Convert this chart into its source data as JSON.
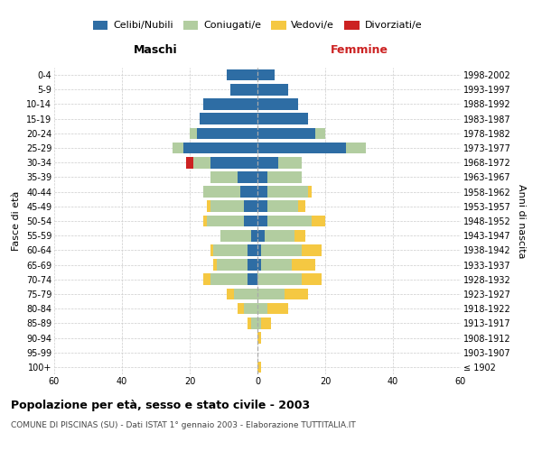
{
  "age_groups": [
    "100+",
    "95-99",
    "90-94",
    "85-89",
    "80-84",
    "75-79",
    "70-74",
    "65-69",
    "60-64",
    "55-59",
    "50-54",
    "45-49",
    "40-44",
    "35-39",
    "30-34",
    "25-29",
    "20-24",
    "15-19",
    "10-14",
    "5-9",
    "0-4"
  ],
  "birth_years": [
    "≤ 1902",
    "1903-1907",
    "1908-1912",
    "1913-1917",
    "1918-1922",
    "1923-1927",
    "1928-1932",
    "1933-1937",
    "1938-1942",
    "1943-1947",
    "1948-1952",
    "1953-1957",
    "1958-1962",
    "1963-1967",
    "1968-1972",
    "1973-1977",
    "1978-1982",
    "1983-1987",
    "1988-1992",
    "1993-1997",
    "1998-2002"
  ],
  "maschi": {
    "celibi": [
      0,
      0,
      0,
      0,
      0,
      0,
      3,
      3,
      3,
      2,
      4,
      4,
      5,
      6,
      14,
      22,
      18,
      17,
      16,
      8,
      9
    ],
    "coniugati": [
      0,
      0,
      0,
      2,
      4,
      7,
      11,
      9,
      10,
      9,
      11,
      10,
      11,
      8,
      5,
      3,
      2,
      0,
      0,
      0,
      0
    ],
    "vedovi": [
      0,
      0,
      0,
      1,
      2,
      2,
      2,
      1,
      1,
      0,
      1,
      1,
      0,
      0,
      0,
      0,
      0,
      0,
      0,
      0,
      0
    ],
    "divorziati": [
      0,
      0,
      0,
      0,
      0,
      0,
      0,
      0,
      0,
      0,
      0,
      0,
      0,
      0,
      2,
      0,
      0,
      0,
      0,
      0,
      0
    ]
  },
  "femmine": {
    "nubili": [
      0,
      0,
      0,
      0,
      0,
      0,
      0,
      1,
      1,
      2,
      3,
      3,
      3,
      3,
      6,
      26,
      17,
      15,
      12,
      9,
      5
    ],
    "coniugate": [
      0,
      0,
      0,
      1,
      3,
      8,
      13,
      9,
      12,
      9,
      13,
      9,
      12,
      10,
      7,
      6,
      3,
      0,
      0,
      0,
      0
    ],
    "vedove": [
      1,
      0,
      1,
      3,
      6,
      7,
      6,
      7,
      6,
      3,
      4,
      2,
      1,
      0,
      0,
      0,
      0,
      0,
      0,
      0,
      0
    ],
    "divorziate": [
      0,
      0,
      0,
      0,
      0,
      0,
      0,
      0,
      0,
      0,
      0,
      0,
      0,
      0,
      0,
      0,
      0,
      0,
      0,
      0,
      0
    ]
  },
  "colors": {
    "celibi": "#2E6DA4",
    "coniugati": "#B2CDA0",
    "vedovi": "#F5C842",
    "divorziati": "#CC2222"
  },
  "xlim": 60,
  "title": "Popolazione per età, sesso e stato civile - 2003",
  "subtitle": "COMUNE DI PISCINAS (SU) - Dati ISTAT 1° gennaio 2003 - Elaborazione TUTTITALIA.IT",
  "ylabel_left": "Fasce di età",
  "ylabel_right": "Anni di nascita",
  "xlabel_left": "Maschi",
  "xlabel_right": "Femmine",
  "legend_labels": [
    "Celibi/Nubili",
    "Coniugati/e",
    "Vedovi/e",
    "Divorziati/e"
  ],
  "legend_colors": [
    "#2E6DA4",
    "#B2CDA0",
    "#F5C842",
    "#CC2222"
  ],
  "legend_marker_colors": [
    "#3A6EA5",
    "#B5CEA1",
    "#F6CA56",
    "#D42B2B"
  ]
}
